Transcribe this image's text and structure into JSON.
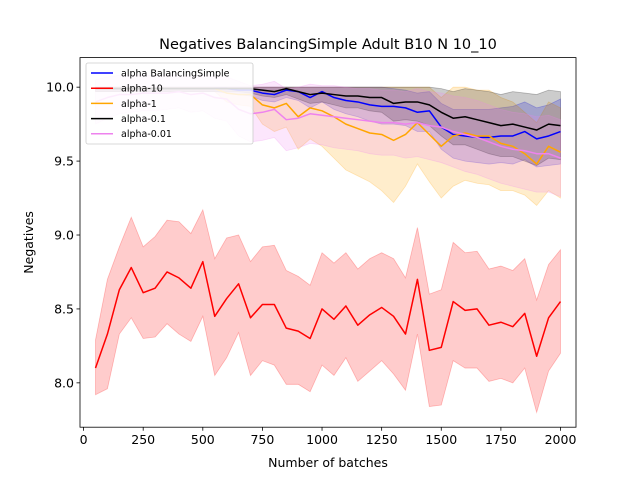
{
  "chart_data": {
    "type": "line",
    "title": "Negatives BalancingSimple Adult B10 N 10_10",
    "xlabel": "Number of batches",
    "ylabel": "Negatives",
    "xlim": [
      -15,
      2065
    ],
    "ylim": [
      7.7,
      10.2
    ],
    "x_ticks": [
      0,
      250,
      500,
      750,
      1000,
      1250,
      1500,
      1750,
      2000
    ],
    "y_ticks": [
      8.0,
      8.5,
      9.0,
      9.5,
      10.0
    ],
    "x_tick_labels": [
      "0",
      "250",
      "500",
      "750",
      "1000",
      "1250",
      "1500",
      "1750",
      "2000"
    ],
    "y_tick_labels": [
      "8.0",
      "8.5",
      "9.0",
      "9.5",
      "10.0"
    ],
    "grid": false,
    "legend_position": "top-left",
    "x": [
      50,
      100,
      150,
      200,
      250,
      300,
      350,
      400,
      450,
      500,
      550,
      600,
      650,
      700,
      750,
      800,
      850,
      900,
      950,
      1000,
      1050,
      1100,
      1150,
      1200,
      1250,
      1300,
      1350,
      1400,
      1450,
      1500,
      1550,
      1600,
      1650,
      1700,
      1750,
      1800,
      1850,
      1900,
      1950,
      2000
    ],
    "series": [
      {
        "name": "alpha BalancingSimple",
        "color": "#0000ff",
        "values": [
          9.99,
          9.99,
          9.99,
          9.99,
          9.99,
          9.99,
          9.99,
          9.99,
          9.99,
          9.99,
          9.99,
          9.99,
          9.98,
          9.98,
          9.96,
          9.95,
          9.98,
          9.97,
          9.93,
          9.97,
          9.93,
          9.91,
          9.9,
          9.88,
          9.87,
          9.87,
          9.86,
          9.83,
          9.84,
          9.73,
          9.68,
          9.67,
          9.66,
          9.66,
          9.67,
          9.67,
          9.7,
          9.65,
          9.67,
          9.7
        ],
        "lower": [
          9.97,
          9.97,
          9.97,
          9.97,
          9.97,
          9.97,
          9.97,
          9.97,
          9.97,
          9.97,
          9.97,
          9.96,
          9.95,
          9.94,
          9.91,
          9.9,
          9.93,
          9.91,
          9.86,
          9.9,
          9.85,
          9.82,
          9.8,
          9.77,
          9.75,
          9.75,
          9.74,
          9.7,
          9.7,
          9.58,
          9.52,
          9.5,
          9.49,
          9.48,
          9.49,
          9.48,
          9.51,
          9.46,
          9.47,
          9.48
        ],
        "upper": [
          10.0,
          10.0,
          10.0,
          10.0,
          10.0,
          10.0,
          10.0,
          10.0,
          10.0,
          10.0,
          10.0,
          10.0,
          10.0,
          10.0,
          10.0,
          10.0,
          10.0,
          10.0,
          10.0,
          10.0,
          10.0,
          10.0,
          10.0,
          10.0,
          10.0,
          9.99,
          9.98,
          9.96,
          9.97,
          9.89,
          9.85,
          9.85,
          9.85,
          9.85,
          9.86,
          9.87,
          9.9,
          9.86,
          9.88,
          9.92
        ]
      },
      {
        "name": "alpha-10",
        "color": "#ff0000",
        "values": [
          8.1,
          8.33,
          8.63,
          8.78,
          8.61,
          8.64,
          8.75,
          8.71,
          8.64,
          8.82,
          8.45,
          8.57,
          8.67,
          8.44,
          8.53,
          8.53,
          8.37,
          8.35,
          8.3,
          8.5,
          8.43,
          8.52,
          8.39,
          8.46,
          8.51,
          8.45,
          8.33,
          8.7,
          8.22,
          8.24,
          8.55,
          8.49,
          8.5,
          8.39,
          8.41,
          8.38,
          8.47,
          8.18,
          8.44,
          8.55
        ],
        "lower": [
          7.92,
          7.96,
          8.33,
          8.44,
          8.3,
          8.31,
          8.4,
          8.33,
          8.28,
          8.45,
          8.05,
          8.17,
          8.34,
          8.05,
          8.15,
          8.12,
          7.99,
          7.99,
          7.94,
          8.12,
          8.05,
          8.17,
          8.01,
          8.08,
          8.15,
          8.06,
          7.95,
          8.33,
          7.84,
          7.85,
          8.15,
          8.1,
          8.1,
          8.01,
          8.03,
          8.0,
          8.1,
          7.8,
          8.08,
          8.2
        ],
        "upper": [
          8.29,
          8.7,
          8.92,
          9.12,
          8.92,
          8.99,
          9.1,
          9.09,
          9.01,
          9.17,
          8.84,
          8.98,
          9.0,
          8.82,
          8.92,
          8.93,
          8.76,
          8.72,
          8.66,
          8.88,
          8.81,
          8.88,
          8.77,
          8.84,
          8.88,
          8.84,
          8.71,
          9.05,
          8.6,
          8.63,
          8.95,
          8.88,
          8.89,
          8.77,
          8.79,
          8.76,
          8.84,
          8.56,
          8.8,
          8.9
        ]
      },
      {
        "name": "alpha-1",
        "color": "#ffa500",
        "values": [
          9.99,
          9.99,
          9.99,
          9.99,
          9.99,
          9.99,
          9.99,
          9.99,
          9.99,
          9.99,
          9.99,
          9.96,
          9.95,
          9.95,
          9.88,
          9.86,
          9.89,
          9.8,
          9.86,
          9.84,
          9.8,
          9.75,
          9.72,
          9.69,
          9.68,
          9.64,
          9.68,
          9.76,
          9.68,
          9.6,
          9.67,
          9.69,
          9.67,
          9.67,
          9.62,
          9.6,
          9.55,
          9.48,
          9.6,
          9.56
        ],
        "lower": [
          9.97,
          9.97,
          9.97,
          9.97,
          9.97,
          9.97,
          9.97,
          9.97,
          9.97,
          9.97,
          9.97,
          9.9,
          9.88,
          9.87,
          9.75,
          9.7,
          9.73,
          9.58,
          9.65,
          9.6,
          9.52,
          9.44,
          9.4,
          9.36,
          9.3,
          9.22,
          9.33,
          9.48,
          9.36,
          9.25,
          9.33,
          9.37,
          9.35,
          9.34,
          9.3,
          9.3,
          9.27,
          9.2,
          9.3,
          9.25
        ],
        "upper": [
          10.0,
          10.0,
          10.0,
          10.0,
          10.0,
          10.0,
          10.0,
          10.0,
          10.0,
          10.0,
          10.0,
          10.0,
          10.0,
          10.0,
          10.0,
          10.0,
          10.0,
          10.0,
          10.0,
          10.0,
          10.0,
          10.0,
          10.0,
          10.0,
          10.0,
          10.0,
          10.0,
          10.0,
          10.0,
          9.93,
          10.0,
          10.0,
          9.98,
          9.98,
          9.93,
          9.9,
          9.83,
          9.76,
          9.9,
          9.86
        ]
      },
      {
        "name": "alpha-0.1",
        "color": "#000000",
        "values": [
          9.99,
          9.99,
          9.99,
          9.99,
          9.99,
          9.99,
          9.99,
          9.99,
          9.99,
          9.99,
          9.99,
          9.99,
          9.99,
          9.99,
          9.98,
          9.97,
          9.99,
          9.97,
          9.95,
          9.96,
          9.95,
          9.94,
          9.94,
          9.93,
          9.93,
          9.89,
          9.9,
          9.9,
          9.88,
          9.83,
          9.79,
          9.8,
          9.78,
          9.76,
          9.74,
          9.75,
          9.73,
          9.71,
          9.75,
          9.74
        ],
        "lower": [
          9.97,
          9.97,
          9.97,
          9.97,
          9.97,
          9.97,
          9.97,
          9.97,
          9.97,
          9.97,
          9.97,
          9.97,
          9.97,
          9.96,
          9.94,
          9.93,
          9.95,
          9.92,
          9.89,
          9.9,
          9.88,
          9.86,
          9.86,
          9.84,
          9.83,
          9.77,
          9.78,
          9.77,
          9.74,
          9.67,
          9.61,
          9.61,
          9.58,
          9.55,
          9.53,
          9.53,
          9.5,
          9.47,
          9.52,
          9.51
        ],
        "upper": [
          10.0,
          10.0,
          10.0,
          10.0,
          10.0,
          10.0,
          10.0,
          10.0,
          10.0,
          10.0,
          10.0,
          10.0,
          10.0,
          10.0,
          10.0,
          10.0,
          10.0,
          10.0,
          10.0,
          10.0,
          10.0,
          10.0,
          10.0,
          10.0,
          10.0,
          10.0,
          10.0,
          10.0,
          10.0,
          9.99,
          9.97,
          9.99,
          9.98,
          9.97,
          9.95,
          9.97,
          9.96,
          9.95,
          9.98,
          9.97
        ]
      },
      {
        "name": "alpha-0.01",
        "color": "#ee82ee",
        "values": [
          9.9,
          9.93,
          9.95,
          9.95,
          9.96,
          9.96,
          9.96,
          9.97,
          9.95,
          9.96,
          9.93,
          9.92,
          9.85,
          9.82,
          9.83,
          9.85,
          9.78,
          9.79,
          9.82,
          9.81,
          9.8,
          9.79,
          9.78,
          9.77,
          9.76,
          9.76,
          9.75,
          9.76,
          9.74,
          9.73,
          9.7,
          9.68,
          9.66,
          9.63,
          9.6,
          9.58,
          9.57,
          9.55,
          9.55,
          9.52
        ],
        "lower": [
          9.75,
          9.79,
          9.82,
          9.83,
          9.84,
          9.84,
          9.85,
          9.86,
          9.83,
          9.84,
          9.79,
          9.77,
          9.67,
          9.63,
          9.64,
          9.66,
          9.57,
          9.59,
          9.62,
          9.61,
          9.59,
          9.58,
          9.57,
          9.55,
          9.54,
          9.54,
          9.52,
          9.53,
          9.51,
          9.49,
          9.46,
          9.43,
          9.41,
          9.38,
          9.35,
          9.33,
          9.31,
          9.29,
          9.29,
          9.26
        ],
        "upper": [
          10.05,
          10.07,
          10.08,
          10.08,
          10.08,
          10.08,
          10.08,
          10.08,
          10.07,
          10.08,
          10.07,
          10.07,
          10.04,
          10.01,
          10.02,
          10.04,
          9.99,
          10.0,
          10.02,
          10.01,
          10.01,
          10.0,
          9.99,
          9.99,
          9.98,
          9.98,
          9.97,
          9.99,
          9.97,
          9.96,
          9.94,
          9.93,
          9.91,
          9.88,
          9.85,
          9.83,
          9.82,
          9.8,
          9.81,
          9.78
        ]
      }
    ]
  }
}
